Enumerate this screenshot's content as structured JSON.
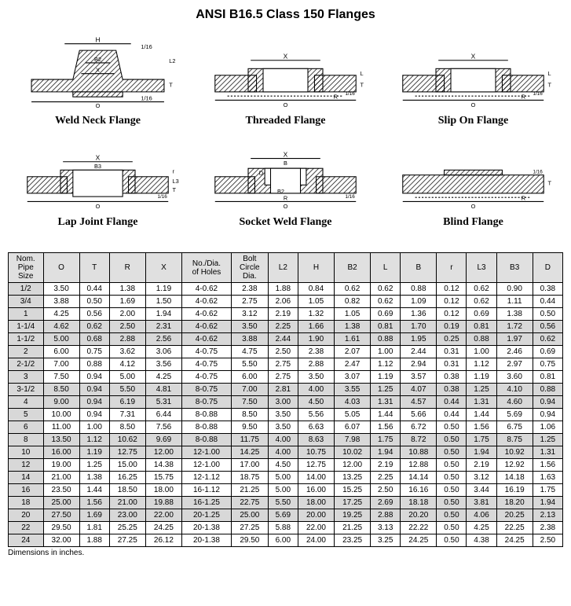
{
  "title": "ANSI B16.5 Class 150 Flanges",
  "diagrams": [
    "Weld Neck Flange",
    "Threaded Flange",
    "Slip On Flange",
    "Lap Joint Flange",
    "Socket Weld Flange",
    "Blind Flange"
  ],
  "footnote": "Dimensions in inches.",
  "columns": [
    "Nom. Pipe Size",
    "O",
    "T",
    "R",
    "X",
    "No./Dia. of Holes",
    "Bolt Circle Dia.",
    "L2",
    "H",
    "B2",
    "L",
    "B",
    "r",
    "L3",
    "B3",
    "D"
  ],
  "rows": [
    [
      "1/2",
      "3.50",
      "0.44",
      "1.38",
      "1.19",
      "4-0.62",
      "2.38",
      "1.88",
      "0.84",
      "0.62",
      "0.62",
      "0.88",
      "0.12",
      "0.62",
      "0.90",
      "0.38"
    ],
    [
      "3/4",
      "3.88",
      "0.50",
      "1.69",
      "1.50",
      "4-0.62",
      "2.75",
      "2.06",
      "1.05",
      "0.82",
      "0.62",
      "1.09",
      "0.12",
      "0.62",
      "1.11",
      "0.44"
    ],
    [
      "1",
      "4.25",
      "0.56",
      "2.00",
      "1.94",
      "4-0.62",
      "3.12",
      "2.19",
      "1.32",
      "1.05",
      "0.69",
      "1.36",
      "0.12",
      "0.69",
      "1.38",
      "0.50"
    ],
    [
      "1-1/4",
      "4.62",
      "0.62",
      "2.50",
      "2.31",
      "4-0.62",
      "3.50",
      "2.25",
      "1.66",
      "1.38",
      "0.81",
      "1.70",
      "0.19",
      "0.81",
      "1.72",
      "0.56"
    ],
    [
      "1-1/2",
      "5.00",
      "0.68",
      "2.88",
      "2.56",
      "4-0.62",
      "3.88",
      "2.44",
      "1.90",
      "1.61",
      "0.88",
      "1.95",
      "0.25",
      "0.88",
      "1.97",
      "0.62"
    ],
    [
      "2",
      "6.00",
      "0.75",
      "3.62",
      "3.06",
      "4-0.75",
      "4.75",
      "2.50",
      "2.38",
      "2.07",
      "1.00",
      "2.44",
      "0.31",
      "1.00",
      "2.46",
      "0.69"
    ],
    [
      "2-1/2",
      "7.00",
      "0.88",
      "4.12",
      "3.56",
      "4-0.75",
      "5.50",
      "2.75",
      "2.88",
      "2.47",
      "1.12",
      "2.94",
      "0.31",
      "1.12",
      "2.97",
      "0.75"
    ],
    [
      "3",
      "7.50",
      "0.94",
      "5.00",
      "4.25",
      "4-0.75",
      "6.00",
      "2.75",
      "3.50",
      "3.07",
      "1.19",
      "3.57",
      "0.38",
      "1.19",
      "3.60",
      "0.81"
    ],
    [
      "3-1/2",
      "8.50",
      "0.94",
      "5.50",
      "4.81",
      "8-0.75",
      "7.00",
      "2.81",
      "4.00",
      "3.55",
      "1.25",
      "4.07",
      "0.38",
      "1.25",
      "4.10",
      "0.88"
    ],
    [
      "4",
      "9.00",
      "0.94",
      "6.19",
      "5.31",
      "8-0.75",
      "7.50",
      "3.00",
      "4.50",
      "4.03",
      "1.31",
      "4.57",
      "0.44",
      "1.31",
      "4.60",
      "0.94"
    ],
    [
      "5",
      "10.00",
      "0.94",
      "7.31",
      "6.44",
      "8-0.88",
      "8.50",
      "3.50",
      "5.56",
      "5.05",
      "1.44",
      "5.66",
      "0.44",
      "1.44",
      "5.69",
      "0.94"
    ],
    [
      "6",
      "11.00",
      "1.00",
      "8.50",
      "7.56",
      "8-0.88",
      "9.50",
      "3.50",
      "6.63",
      "6.07",
      "1.56",
      "6.72",
      "0.50",
      "1.56",
      "6.75",
      "1.06"
    ],
    [
      "8",
      "13.50",
      "1.12",
      "10.62",
      "9.69",
      "8-0.88",
      "11.75",
      "4.00",
      "8.63",
      "7.98",
      "1.75",
      "8.72",
      "0.50",
      "1.75",
      "8.75",
      "1.25"
    ],
    [
      "10",
      "16.00",
      "1.19",
      "12.75",
      "12.00",
      "12-1.00",
      "14.25",
      "4.00",
      "10.75",
      "10.02",
      "1.94",
      "10.88",
      "0.50",
      "1.94",
      "10.92",
      "1.31"
    ],
    [
      "12",
      "19.00",
      "1.25",
      "15.00",
      "14.38",
      "12-1.00",
      "17.00",
      "4.50",
      "12.75",
      "12.00",
      "2.19",
      "12.88",
      "0.50",
      "2.19",
      "12.92",
      "1.56"
    ],
    [
      "14",
      "21.00",
      "1.38",
      "16.25",
      "15.75",
      "12-1.12",
      "18.75",
      "5.00",
      "14.00",
      "13.25",
      "2.25",
      "14.14",
      "0.50",
      "3.12",
      "14.18",
      "1.63"
    ],
    [
      "16",
      "23.50",
      "1.44",
      "18.50",
      "18.00",
      "16-1.12",
      "21.25",
      "5.00",
      "16.00",
      "15.25",
      "2.50",
      "16.16",
      "0.50",
      "3.44",
      "16.19",
      "1.75"
    ],
    [
      "18",
      "25.00",
      "1.56",
      "21.00",
      "19.88",
      "16-1.25",
      "22.75",
      "5.50",
      "18.00",
      "17.25",
      "2.69",
      "18.18",
      "0.50",
      "3.81",
      "18.20",
      "1.94"
    ],
    [
      "20",
      "27.50",
      "1.69",
      "23.00",
      "22.00",
      "20-1.25",
      "25.00",
      "5.69",
      "20.00",
      "19.25",
      "2.88",
      "20.20",
      "0.50",
      "4.06",
      "20.25",
      "2.13"
    ],
    [
      "22",
      "29.50",
      "1.81",
      "25.25",
      "24.25",
      "20-1.38",
      "27.25",
      "5.88",
      "22.00",
      "21.25",
      "3.13",
      "22.22",
      "0.50",
      "4.25",
      "22.25",
      "2.38"
    ],
    [
      "24",
      "32.00",
      "1.88",
      "27.25",
      "26.12",
      "20-1.38",
      "29.50",
      "6.00",
      "24.00",
      "23.25",
      "3.25",
      "24.25",
      "0.50",
      "4.38",
      "24.25",
      "2.50"
    ]
  ],
  "shaded_groups": [
    [
      3,
      4
    ],
    [
      8,
      9
    ],
    [
      12,
      13
    ],
    [
      17,
      18
    ]
  ],
  "style": {
    "title_fontsize": 16,
    "table_fontsize": 10,
    "label_fontsize": 14,
    "header_bg": "#e0e0e0",
    "shaded_bg": "#d8d8d8",
    "border_color": "#000000",
    "background": "#ffffff",
    "text_color": "#000000"
  }
}
